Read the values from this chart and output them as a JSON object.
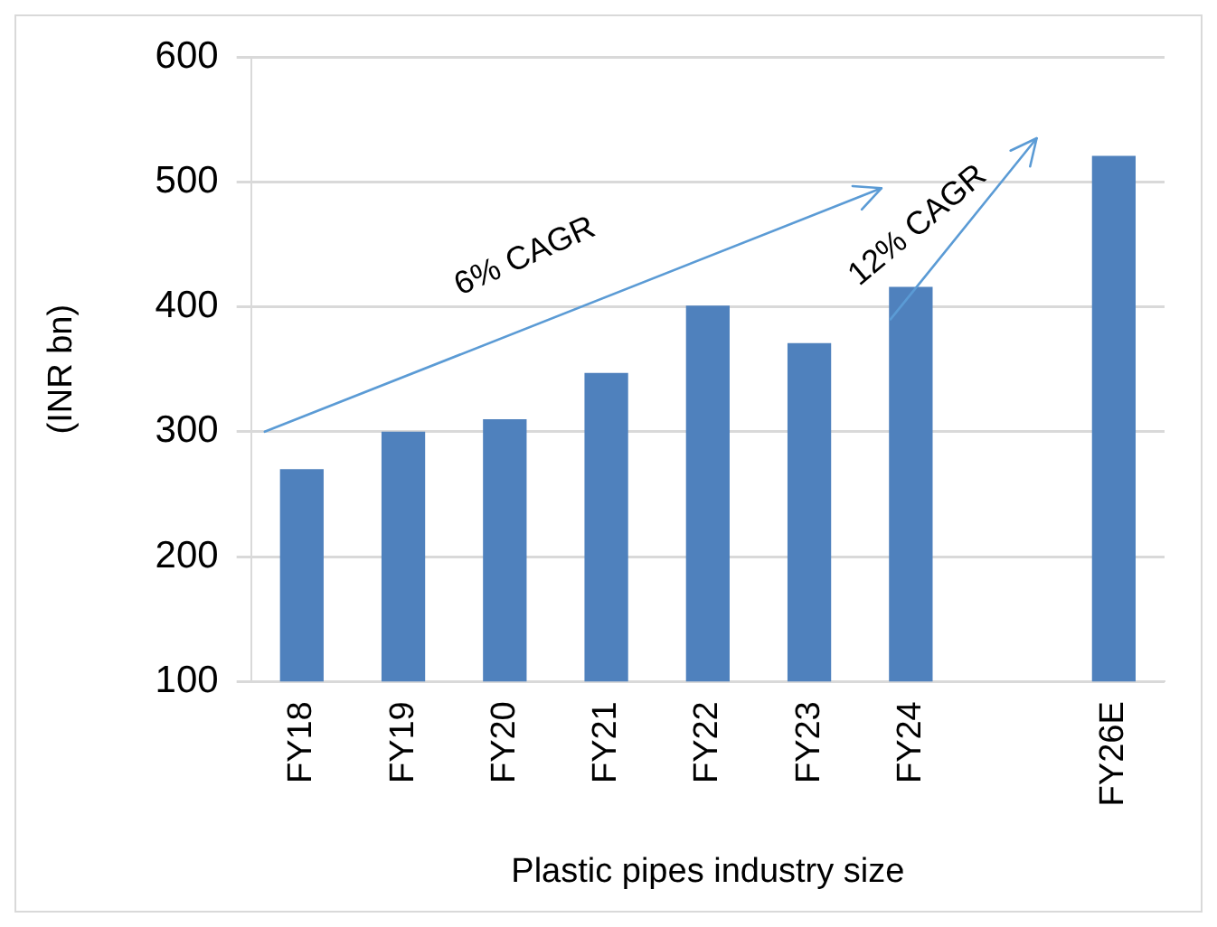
{
  "chart_data": {
    "type": "bar",
    "xlabel": "Plastic pipes industry size",
    "ylabel": "(INR bn)",
    "categories": [
      "FY18",
      "FY19",
      "FY20",
      "FY21",
      "FY22",
      "FY23",
      "FY24",
      null,
      "FY26E"
    ],
    "values": [
      270,
      300,
      310,
      347,
      401,
      371,
      416,
      null,
      521
    ],
    "color": "#4f81bd",
    "ylim": [
      100,
      600
    ],
    "yticks": [
      100,
      200,
      300,
      400,
      500,
      600
    ],
    "grid": "y",
    "annotations": [
      "6% CAGR",
      "12% CAGR"
    ]
  }
}
